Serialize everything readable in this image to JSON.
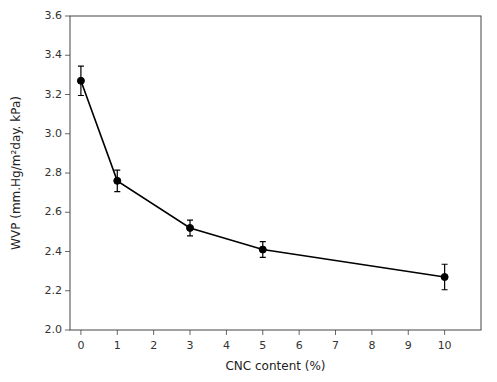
{
  "chart_data": {
    "type": "line",
    "x": [
      0,
      1,
      3,
      5,
      10
    ],
    "values": [
      3.27,
      2.76,
      2.52,
      2.41,
      2.27
    ],
    "errors": [
      0.075,
      0.055,
      0.04,
      0.04,
      0.065
    ],
    "xlabel": "CNC content (%)",
    "ylabel": "WVP (mm.Hg/m²day. kPa)",
    "xlim": [
      -0.3,
      11
    ],
    "ylim": [
      2.0,
      3.6
    ],
    "xticks": [
      0,
      1,
      2,
      3,
      4,
      5,
      6,
      7,
      8,
      9,
      10
    ],
    "yticks": [
      {
        "value": 2.0,
        "label": "2.0"
      },
      2.2,
      2.4,
      2.6,
      2.8,
      {
        "value": 3.0,
        "label": "3.0"
      },
      3.2,
      3.4,
      3.6
    ],
    "color": "#000000",
    "marker": "o",
    "line_style": "solid",
    "grid": false
  }
}
